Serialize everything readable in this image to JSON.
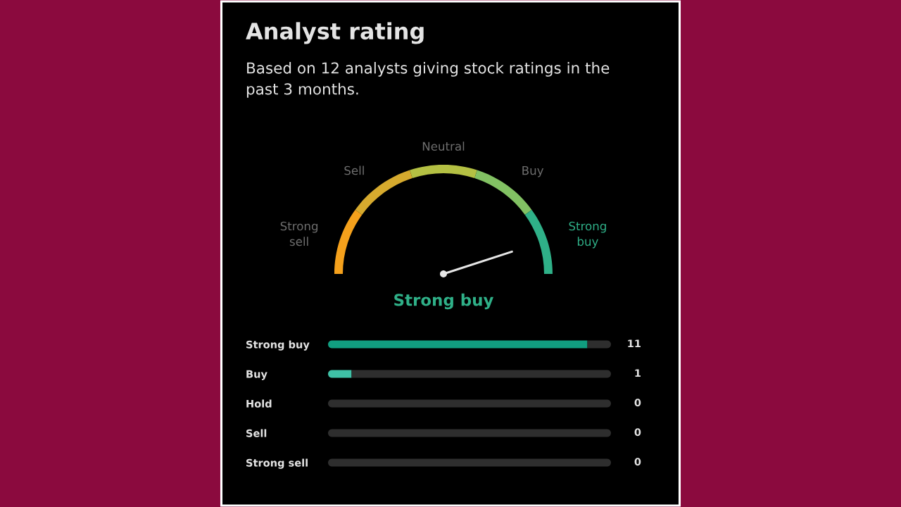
{
  "chart_data": [
    {
      "type": "donut",
      "title": "Analyst rating",
      "subtitle": "Based on 12 analysts giving stock ratings in the past 3 months.",
      "categories": [
        "Strong sell",
        "Sell",
        "Neutral",
        "Buy",
        "Strong buy"
      ],
      "values": [
        20,
        20,
        20,
        20,
        20
      ],
      "colors": [
        "#f5a11c",
        "#d6aa2e",
        "#b4c043",
        "#82c163",
        "#2fb088"
      ],
      "needle": "Strong buy"
    },
    {
      "type": "bar",
      "orientation": "horizontal",
      "stacked": true,
      "categories": [
        "Strong buy",
        "Buy",
        "Hold",
        "Sell",
        "Strong sell"
      ],
      "series": [
        {
          "colors": [
            "#119e80",
            "#3fc1a6",
            "#b4c043",
            "#d6aa2e",
            "#f5a11c"
          ],
          "values": [
            11,
            1,
            0,
            0,
            0
          ],
          "value_labels": [
            "11",
            "1",
            "0",
            "0",
            "0"
          ]
        },
        {
          "color": "#2e2e2e",
          "values": [
            1,
            11,
            12,
            12,
            12
          ]
        }
      ],
      "xlim": [
        0,
        12
      ],
      "tick_labels": "y"
    }
  ]
}
